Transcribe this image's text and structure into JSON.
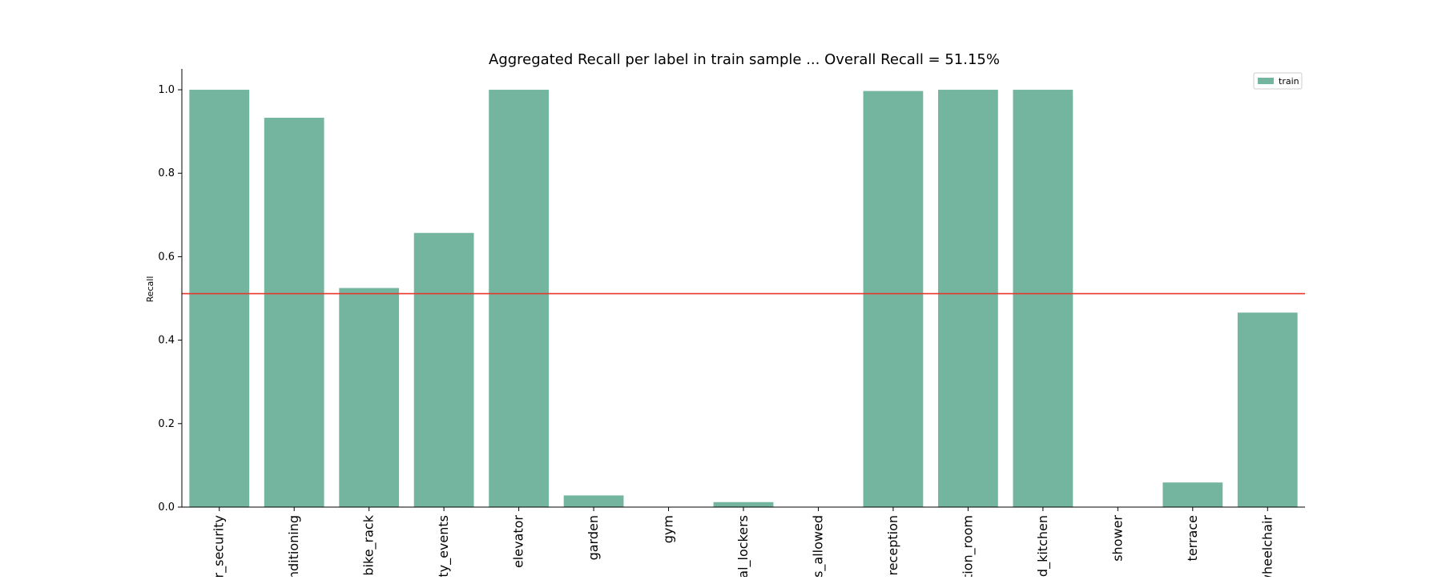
{
  "chart_data": {
    "type": "bar",
    "title": "Aggregated Recall per label in train sample ... Overall Recall = 51.15%",
    "xlabel": "",
    "ylabel": "Recall",
    "ylim": [
      0,
      1.05
    ],
    "yticks": [
      0.0,
      0.2,
      0.4,
      0.6,
      0.8,
      1.0
    ],
    "ytick_labels": [
      "0.0",
      "0.2",
      "0.4",
      "0.6",
      "0.8",
      "1.0"
    ],
    "categories": [
      "ur_security",
      "onditioning",
      "bike_rack",
      "nity_events",
      "elevator",
      "garden",
      "gym",
      "nal_lockers",
      "ts_allowed",
      "reception",
      "ation_room",
      "ed_kitchen",
      "shower",
      "terrace",
      "wheelchair"
    ],
    "series": [
      {
        "name": "train",
        "color": "#73b59f",
        "values": [
          1.0,
          0.933,
          0.525,
          0.657,
          1.0,
          0.028,
          0.0,
          0.012,
          0.0,
          0.997,
          1.0,
          1.0,
          0.0,
          0.059,
          0.466
        ]
      }
    ],
    "reference_line": {
      "value": 0.5115,
      "color": "#e8372b"
    },
    "legend": {
      "position": "top-right",
      "entries": [
        "train"
      ]
    },
    "grid": false
  }
}
